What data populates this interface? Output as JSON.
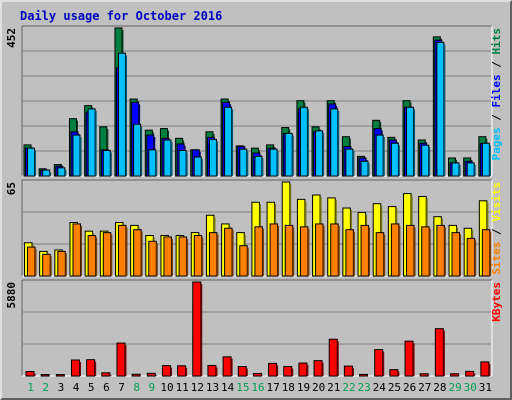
{
  "window": {
    "title": "Daily usage for October 2016"
  },
  "colors": {
    "background": "#c0c0c0",
    "panel": "#c0c0c0",
    "hits": "#008040",
    "files": "#0000ff",
    "pages": "#00c0ff",
    "visits": "#ffff00",
    "sites": "#ff8000",
    "kbytes": "#ff0000",
    "title": "#0000c0",
    "weekend": "#00a050",
    "weekday": "#000000"
  },
  "chart_data": [
    {
      "type": "bar",
      "title": "Daily usage for October 2016",
      "categories": [
        "1",
        "2",
        "3",
        "4",
        "5",
        "6",
        "7",
        "8",
        "9",
        "10",
        "11",
        "12",
        "13",
        "14",
        "15",
        "16",
        "17",
        "18",
        "19",
        "20",
        "21",
        "22",
        "23",
        "24",
        "25",
        "26",
        "27",
        "28",
        "29",
        "30",
        "31"
      ],
      "weekend_days": [
        "1",
        "2",
        "8",
        "9",
        "15",
        "16",
        "22",
        "23",
        "29",
        "30"
      ],
      "ymax_label": "452",
      "ylim": [
        0,
        452
      ],
      "legend": [
        "Pages",
        "Files",
        "Hits"
      ],
      "series": [
        {
          "name": "Hits",
          "values": [
            95,
            22,
            35,
            175,
            215,
            150,
            452,
            235,
            140,
            145,
            115,
            80,
            135,
            235,
            92,
            85,
            95,
            148,
            230,
            150,
            230,
            120,
            60,
            170,
            118,
            230,
            110,
            425,
            55,
            55,
            120
          ]
        },
        {
          "name": "Files",
          "values": [
            85,
            18,
            30,
            135,
            195,
            80,
            330,
            225,
            125,
            115,
            98,
            80,
            118,
            225,
            90,
            70,
            85,
            130,
            205,
            135,
            220,
            90,
            55,
            145,
            110,
            210,
            100,
            415,
            40,
            45,
            100
          ]
        },
        {
          "name": "Pages",
          "values": [
            85,
            18,
            25,
            125,
            205,
            78,
            375,
            158,
            80,
            110,
            78,
            58,
            112,
            210,
            82,
            60,
            82,
            130,
            210,
            138,
            205,
            82,
            45,
            125,
            100,
            210,
            94,
            408,
            40,
            40,
            100
          ]
        }
      ]
    },
    {
      "type": "bar",
      "categories": [
        "1",
        "2",
        "3",
        "4",
        "5",
        "6",
        "7",
        "8",
        "9",
        "10",
        "11",
        "12",
        "13",
        "14",
        "15",
        "16",
        "17",
        "18",
        "19",
        "20",
        "21",
        "22",
        "23",
        "24",
        "25",
        "26",
        "27",
        "28",
        "29",
        "30",
        "31"
      ],
      "ymax_label": "65",
      "ylim": [
        0,
        65
      ],
      "legend": [
        "Sites",
        "Visits"
      ],
      "series": [
        {
          "name": "Visits",
          "values": [
            23,
            17,
            18,
            37,
            31,
            31,
            37,
            35,
            28,
            28,
            28,
            30,
            42,
            36,
            30,
            51,
            51,
            65,
            53,
            56,
            54,
            47,
            44,
            50,
            48,
            57,
            55,
            41,
            35,
            33,
            52
          ]
        },
        {
          "name": "Sites",
          "values": [
            20,
            15,
            17,
            36,
            28,
            30,
            35,
            32,
            24,
            27,
            27,
            28,
            30,
            33,
            21,
            34,
            36,
            35,
            34,
            36,
            36,
            32,
            35,
            30,
            36,
            35,
            34,
            35,
            30,
            26,
            32
          ]
        }
      ]
    },
    {
      "type": "bar",
      "categories": [
        "1",
        "2",
        "3",
        "4",
        "5",
        "6",
        "7",
        "8",
        "9",
        "10",
        "11",
        "12",
        "13",
        "14",
        "15",
        "16",
        "17",
        "18",
        "19",
        "20",
        "21",
        "22",
        "23",
        "24",
        "25",
        "26",
        "27",
        "28",
        "29",
        "30",
        "31"
      ],
      "ymax_label": "5880",
      "ylim": [
        0,
        5880
      ],
      "legend": [
        "KBytes"
      ],
      "series": [
        {
          "name": "KBytes",
          "values": [
            280,
            90,
            90,
            1000,
            1020,
            200,
            2060,
            110,
            170,
            650,
            640,
            5880,
            660,
            1200,
            590,
            160,
            790,
            590,
            810,
            960,
            2300,
            620,
            100,
            1650,
            400,
            2180,
            140,
            2960,
            140,
            290,
            880
          ]
        }
      ]
    }
  ]
}
